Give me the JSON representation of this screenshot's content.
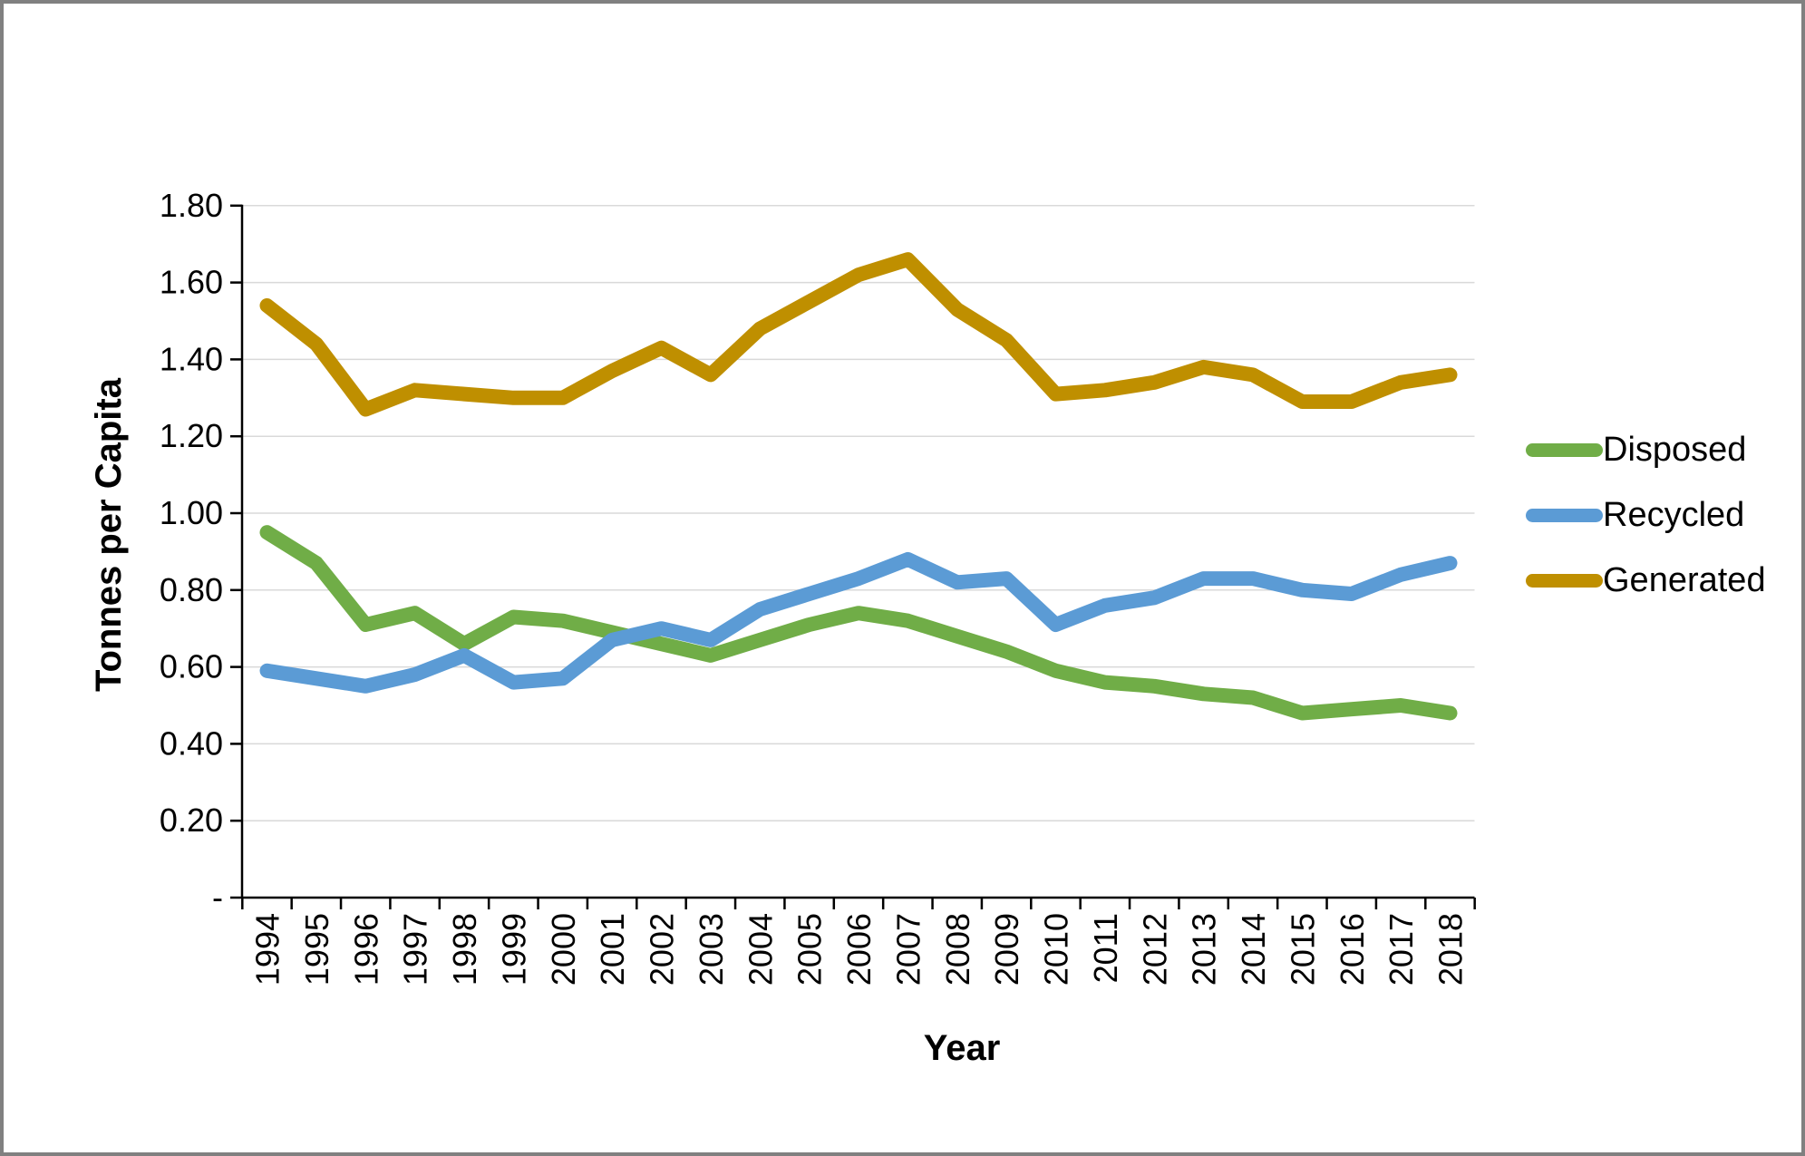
{
  "frame": {
    "background": "#FFFFFF",
    "border_color": "#808080",
    "gridline_color": "#D9D9D9",
    "axis_color": "#000000",
    "tick_label_color": "#000000"
  },
  "chart_data": {
    "type": "line",
    "title": "",
    "xlabel": "Year",
    "ylabel": "Tonnes per Capita",
    "ylim": [
      0,
      1.8
    ],
    "ytick_interval": 0.2,
    "ytick_labels": [
      "-",
      "0.20",
      "0.40",
      "0.60",
      "0.80",
      "1.00",
      "1.20",
      "1.40",
      "1.60",
      "1.80"
    ],
    "grid": "horizontal",
    "legend_position": "right",
    "x_tick_label_rotation_deg": 90,
    "categories": [
      1994,
      1995,
      1996,
      1997,
      1998,
      1999,
      2000,
      2001,
      2002,
      2003,
      2004,
      2005,
      2006,
      2007,
      2008,
      2009,
      2010,
      2011,
      2012,
      2013,
      2014,
      2015,
      2016,
      2017,
      2018
    ],
    "series": [
      {
        "name": "Disposed",
        "color": "#70AD47",
        "values": [
          0.95,
          0.87,
          0.71,
          0.74,
          0.66,
          0.73,
          0.72,
          0.69,
          0.66,
          0.63,
          0.67,
          0.71,
          0.74,
          0.72,
          0.68,
          0.64,
          0.59,
          0.56,
          0.55,
          0.53,
          0.52,
          0.48,
          0.49,
          0.5,
          0.48
        ]
      },
      {
        "name": "Recycled",
        "color": "#5B9BD5",
        "values": [
          0.59,
          0.57,
          0.55,
          0.58,
          0.63,
          0.56,
          0.57,
          0.67,
          0.7,
          0.67,
          0.75,
          0.79,
          0.83,
          0.88,
          0.82,
          0.83,
          0.71,
          0.76,
          0.78,
          0.83,
          0.83,
          0.8,
          0.79,
          0.84,
          0.87
        ]
      },
      {
        "name": "Generated",
        "color": "#BF8F00",
        "values": [
          1.54,
          1.44,
          1.27,
          1.32,
          1.31,
          1.3,
          1.3,
          1.37,
          1.43,
          1.36,
          1.48,
          1.55,
          1.62,
          1.66,
          1.53,
          1.45,
          1.31,
          1.32,
          1.34,
          1.38,
          1.36,
          1.29,
          1.29,
          1.34,
          1.36
        ]
      }
    ]
  }
}
